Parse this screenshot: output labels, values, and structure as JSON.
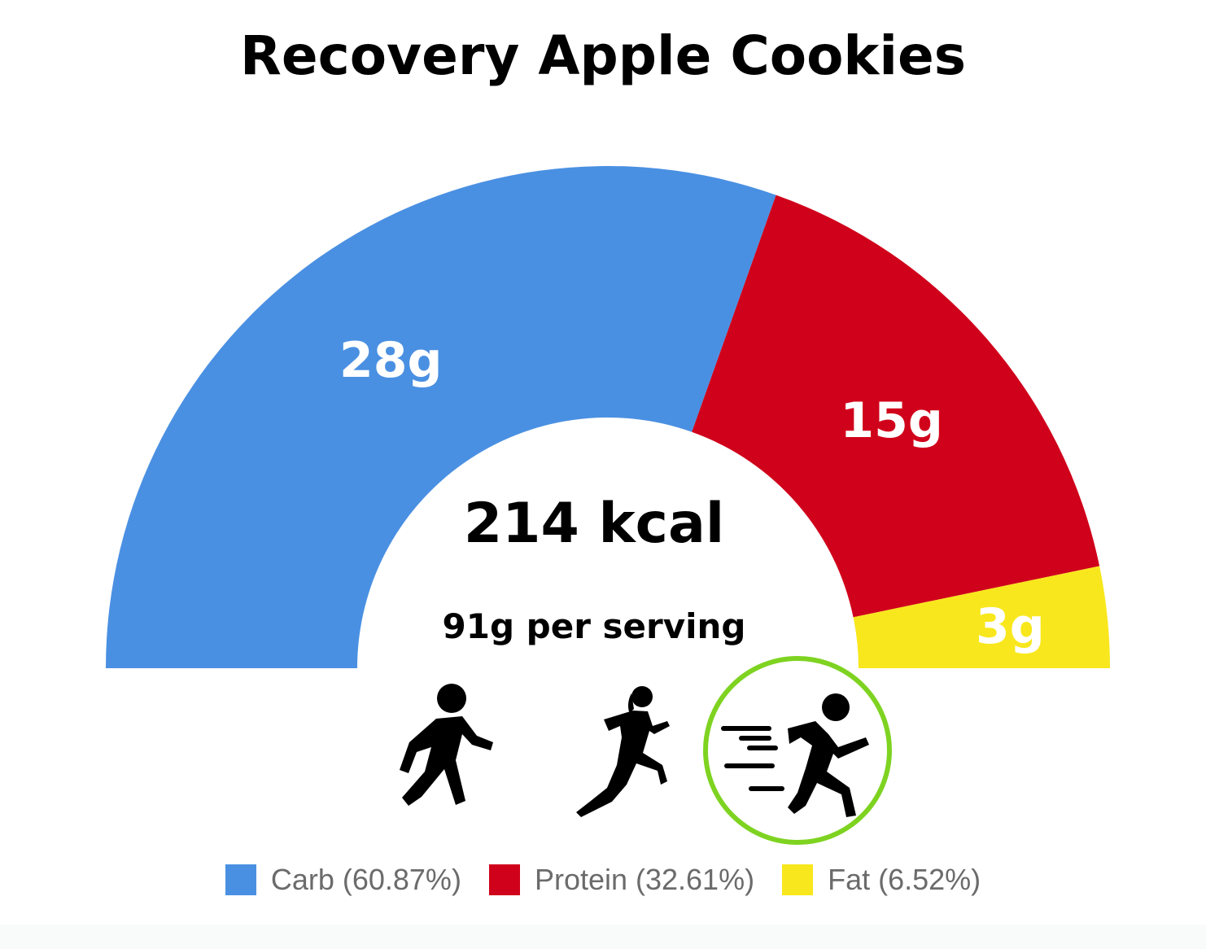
{
  "chart_data": {
    "type": "pie",
    "variant": "half-donut",
    "title": "Recovery Apple Cookies",
    "center_text": {
      "kcal": "214 kcal",
      "serving": "91g per serving"
    },
    "slices": [
      {
        "name": "Carb",
        "grams": 28,
        "label": "28g",
        "percent": 60.87,
        "color": "#4a90e2",
        "legend": "Carb (60.87%)"
      },
      {
        "name": "Protein",
        "grams": 15,
        "label": "15g",
        "percent": 32.61,
        "color": "#d0021b",
        "legend": "Protein (32.61%)"
      },
      {
        "name": "Fat",
        "grams": 3,
        "label": "3g",
        "percent": 6.52,
        "color": "#f8e71c",
        "legend": "Fat (6.52%)"
      }
    ],
    "legend_position": "bottom"
  },
  "activity_icons": [
    {
      "name": "walking-person-icon",
      "highlighted": false
    },
    {
      "name": "running-woman-icon",
      "highlighted": false
    },
    {
      "name": "sprinting-person-icon",
      "highlighted": true,
      "highlight_color": "#7ed321"
    }
  ]
}
